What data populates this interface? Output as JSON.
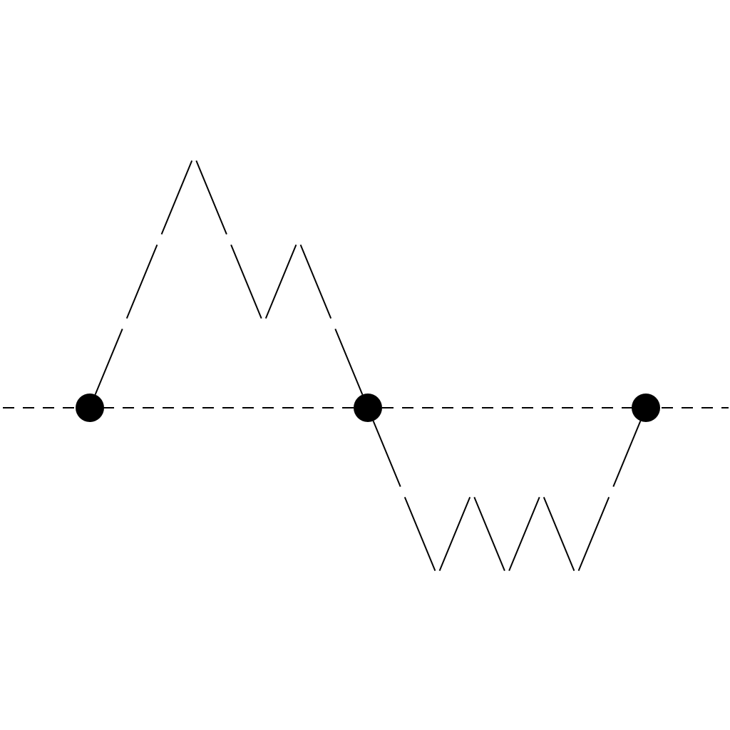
{
  "diagram": {
    "type": "lattice-path",
    "colors": {
      "background": "#ffffff",
      "stroke": "#000000",
      "node": "#000000"
    },
    "nodes": [
      {
        "id": "n1",
        "step": 0,
        "level": 0
      },
      {
        "id": "n2",
        "step": 8,
        "level": 0
      },
      {
        "id": "n3",
        "step": 16,
        "level": 0
      }
    ],
    "steps": [
      "U",
      "U",
      "U",
      "D",
      "D",
      "U",
      "D",
      "D",
      "D",
      "D",
      "U",
      "D",
      "U",
      "D",
      "U",
      "U"
    ]
  }
}
